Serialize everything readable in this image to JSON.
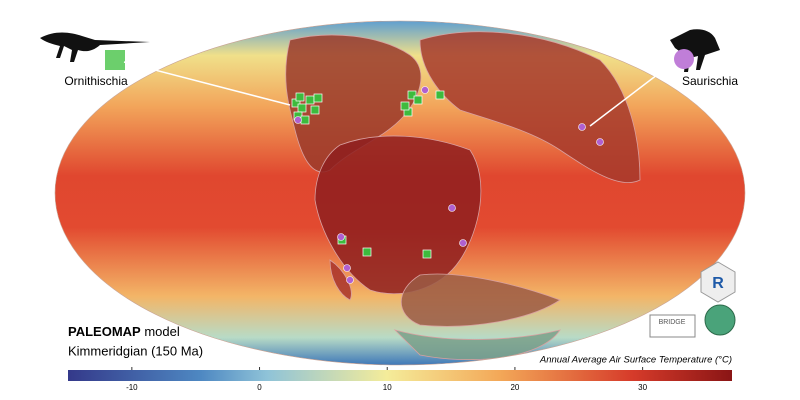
{
  "legend": {
    "ornithischia": "Ornithischia",
    "saurischia": "Saurischia"
  },
  "model": {
    "name": "PALEOMAP",
    "suffix": "model"
  },
  "stage": "Kimmeridgian (150 Ma)",
  "colorbar": {
    "title": "Annual Average Air Surface Temperature (°C)",
    "lim": [
      -15,
      37
    ],
    "ticks": [
      -10,
      0,
      10,
      20,
      30
    ]
  },
  "logos": {
    "bridge": "BRIDGE",
    "r": "R"
  }
}
